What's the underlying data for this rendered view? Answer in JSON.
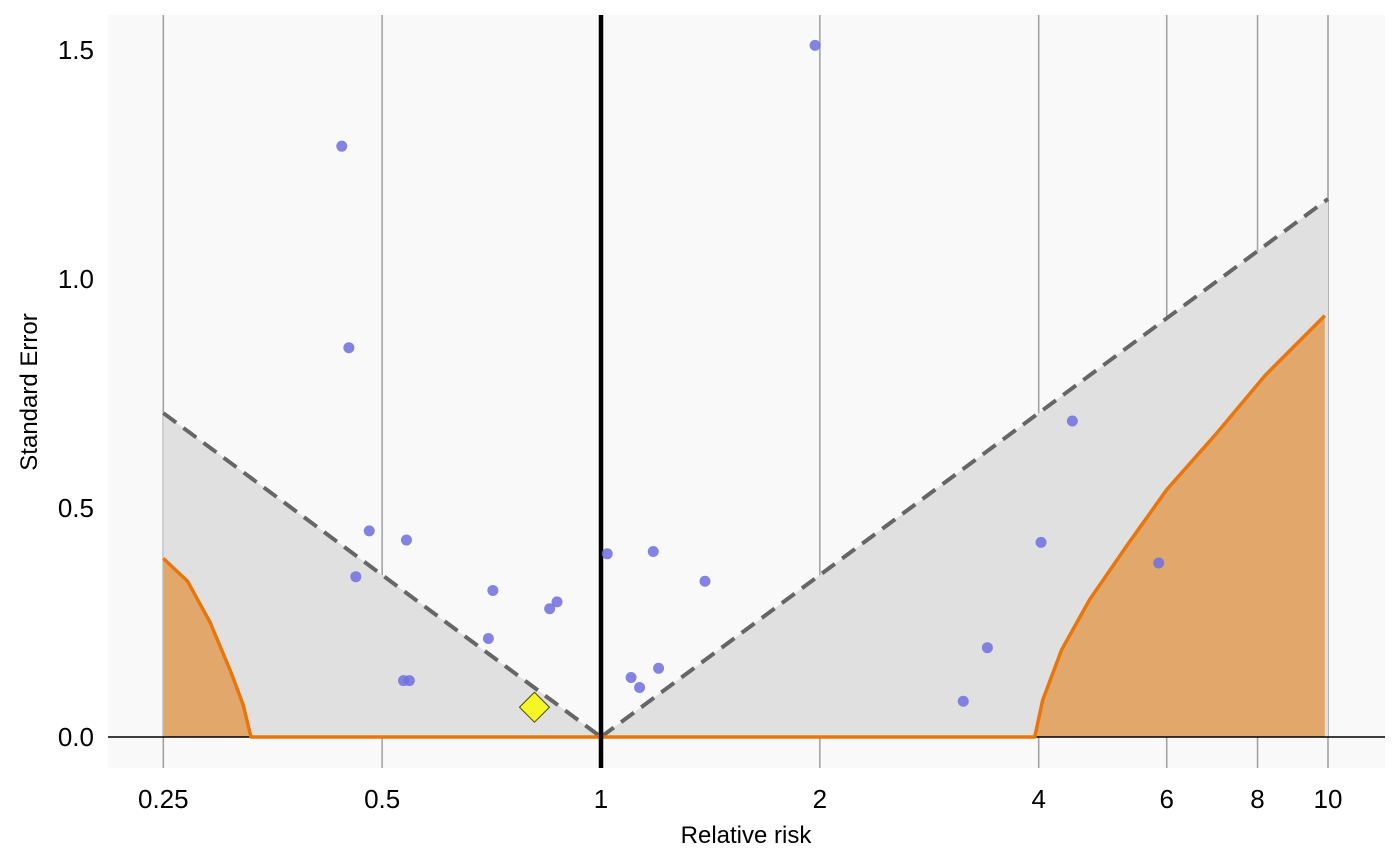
{
  "chart_data": {
    "type": "scatter",
    "title": "",
    "xlabel": "Relative risk",
    "ylabel": "Standard Error",
    "x_scale": "log",
    "x_ticks": [
      0.25,
      0.5,
      1,
      2,
      4,
      6,
      8,
      10
    ],
    "x_tick_labels": [
      "0.25",
      "0.5",
      "1",
      "2",
      "4",
      "6",
      "8",
      "10"
    ],
    "y_ticks": [
      0.0,
      0.5,
      1.0,
      1.5
    ],
    "y_tick_labels": [
      "0.0",
      "0.5",
      "1.0",
      "1.5"
    ],
    "xlim": [
      0.22,
      11.5
    ],
    "ylim": [
      -0.07,
      1.58
    ],
    "grid": "vertical",
    "reference_line_x": 1,
    "colors": {
      "panel_background": "#f9f9f9",
      "funnel_fill": "#e0e0e0",
      "funnel_line": "#666666",
      "significance_fill": "#e2a86b",
      "significance_line": "#e8760c",
      "point": "#6e6ee0",
      "summary_point": "#f6f626"
    },
    "points": [
      {
        "rr": 0.44,
        "se": 1.29
      },
      {
        "rr": 0.45,
        "se": 0.85
      },
      {
        "rr": 0.48,
        "se": 0.45
      },
      {
        "rr": 0.46,
        "se": 0.35
      },
      {
        "rr": 0.54,
        "se": 0.43
      },
      {
        "rr": 0.535,
        "se": 0.123
      },
      {
        "rr": 0.545,
        "se": 0.123
      },
      {
        "rr": 0.71,
        "se": 0.32
      },
      {
        "rr": 0.7,
        "se": 0.215
      },
      {
        "rr": 0.85,
        "se": 0.28
      },
      {
        "rr": 0.87,
        "se": 0.295
      },
      {
        "rr": 1.02,
        "se": 0.4
      },
      {
        "rr": 1.18,
        "se": 0.405
      },
      {
        "rr": 1.39,
        "se": 0.34
      },
      {
        "rr": 1.1,
        "se": 0.13
      },
      {
        "rr": 1.13,
        "se": 0.108
      },
      {
        "rr": 1.2,
        "se": 0.15
      },
      {
        "rr": 1.97,
        "se": 1.51
      },
      {
        "rr": 3.15,
        "se": 0.078
      },
      {
        "rr": 3.4,
        "se": 0.195
      },
      {
        "rr": 4.03,
        "se": 0.425
      },
      {
        "rr": 4.45,
        "se": 0.69
      },
      {
        "rr": 5.85,
        "se": 0.38
      }
    ],
    "summary_estimate": {
      "rr": 0.81,
      "se": 0.065
    },
    "funnel_limit_z": 1.96,
    "significance_region_edges": [
      {
        "rr": 0.25,
        "se": 0.39
      },
      {
        "rr": 0.27,
        "se": 0.34
      },
      {
        "rr": 0.29,
        "se": 0.25
      },
      {
        "rr": 0.31,
        "se": 0.14
      },
      {
        "rr": 0.322,
        "se": 0.07
      },
      {
        "rr": 0.33,
        "se": 0.0
      },
      {
        "rr": 3.95,
        "se": 0.0
      },
      {
        "rr": 4.05,
        "se": 0.08
      },
      {
        "rr": 4.3,
        "se": 0.19
      },
      {
        "rr": 4.7,
        "se": 0.3
      },
      {
        "rr": 5.3,
        "se": 0.42
      },
      {
        "rr": 6.0,
        "se": 0.54
      },
      {
        "rr": 7.0,
        "se": 0.66
      },
      {
        "rr": 8.2,
        "se": 0.79
      },
      {
        "rr": 9.9,
        "se": 0.92
      }
    ]
  }
}
